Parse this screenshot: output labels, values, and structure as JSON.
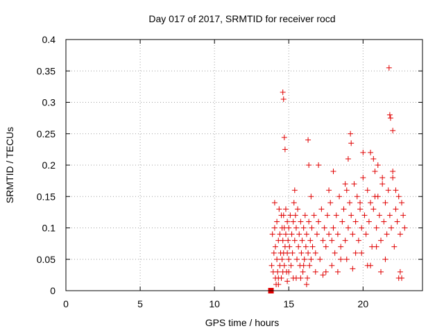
{
  "chart_data": {
    "type": "scatter",
    "title": "Day 017 of 2017, SRMTID for receiver rocd",
    "xlabel": "GPS time / hours",
    "ylabel": "SRMTID / TECUs",
    "xlim": [
      0,
      24
    ],
    "ylim": [
      0,
      0.4
    ],
    "xticks": [
      0,
      5,
      10,
      15,
      20
    ],
    "xtick_labels": [
      "0",
      "5",
      "10",
      "15",
      "20"
    ],
    "yticks": [
      0,
      0.05,
      0.1,
      0.15,
      0.2,
      0.25,
      0.3,
      0.35,
      0.4
    ],
    "ytick_labels": [
      "0",
      "0.05",
      "0.1",
      "0.15",
      "0.2",
      "0.25",
      "0.3",
      "0.35",
      "0.4"
    ],
    "grid": true,
    "marker": "plus",
    "color": "#e00000",
    "series": [
      {
        "name": "SRMTID",
        "x": [
          13.8,
          13.85,
          13.9,
          13.95,
          14.0,
          14.05,
          14.05,
          14.1,
          14.1,
          14.15,
          14.2,
          14.2,
          14.25,
          14.3,
          14.3,
          14.35,
          14.4,
          14.4,
          14.45,
          14.5,
          14.5,
          14.55,
          14.55,
          14.6,
          14.6,
          14.65,
          14.65,
          14.7,
          14.7,
          14.75,
          14.8,
          14.8,
          14.85,
          14.9,
          14.9,
          14.95,
          15.0,
          15.0,
          15.05,
          15.1,
          15.15,
          15.2,
          15.25,
          15.3,
          15.35,
          15.4,
          15.4,
          15.45,
          15.5,
          15.55,
          15.6,
          15.65,
          15.7,
          15.75,
          15.8,
          15.85,
          15.9,
          15.95,
          16.0,
          16.05,
          16.1,
          16.15,
          16.2,
          16.25,
          16.3,
          16.35,
          16.4,
          16.45,
          16.5,
          16.55,
          16.6,
          16.7,
          16.8,
          16.9,
          17.0,
          17.1,
          17.2,
          17.3,
          17.4,
          17.5,
          17.6,
          17.7,
          17.8,
          17.9,
          18.0,
          18.1,
          18.2,
          18.3,
          18.4,
          18.5,
          18.6,
          18.7,
          18.8,
          18.9,
          19.0,
          19.1,
          19.2,
          19.3,
          19.4,
          19.5,
          19.6,
          19.7,
          19.8,
          19.9,
          20.0,
          20.1,
          20.2,
          20.3,
          20.4,
          20.5,
          20.6,
          20.7,
          20.8,
          20.9,
          21.0,
          21.1,
          21.2,
          21.3,
          21.4,
          21.5,
          21.6,
          21.7,
          21.8,
          21.9,
          22.0,
          22.1,
          22.2,
          22.3,
          22.4,
          22.5,
          22.6,
          22.7,
          22.8,
          14.6,
          14.65,
          14.7,
          14.75,
          16.3,
          16.35,
          19.15,
          19.2,
          21.75,
          21.8,
          21.85,
          22.0,
          20.5,
          20.7,
          15.0,
          15.5,
          16.0,
          17.5,
          18.5,
          19.5,
          20.5,
          21.5,
          22.5,
          17.0,
          18.0,
          19.0,
          20.0,
          21.0,
          22.0,
          16.5,
          17.7,
          18.8,
          19.8,
          20.8,
          21.3,
          22.2,
          15.8,
          16.8,
          17.9,
          18.9,
          19.9,
          20.9,
          22.4,
          14.3,
          14.9,
          15.3,
          16.2,
          17.3,
          18.3,
          19.3,
          20.3,
          21.2,
          22.6
        ],
        "y": [
          0.0,
          0.04,
          0.09,
          0.03,
          0.06,
          0.14,
          0.1,
          0.02,
          0.07,
          0.01,
          0.05,
          0.11,
          0.03,
          0.08,
          0.02,
          0.13,
          0.04,
          0.09,
          0.06,
          0.12,
          0.02,
          0.1,
          0.05,
          0.08,
          0.03,
          0.12,
          0.06,
          0.1,
          0.04,
          0.07,
          0.13,
          0.09,
          0.03,
          0.11,
          0.06,
          0.08,
          0.1,
          0.05,
          0.07,
          0.12,
          0.04,
          0.09,
          0.06,
          0.11,
          0.14,
          0.08,
          0.16,
          0.12,
          0.1,
          0.05,
          0.13,
          0.07,
          0.09,
          0.04,
          0.11,
          0.06,
          0.08,
          0.03,
          0.1,
          0.05,
          0.12,
          0.07,
          0.09,
          0.02,
          0.06,
          0.11,
          0.04,
          0.08,
          0.05,
          0.1,
          0.07,
          0.12,
          0.06,
          0.09,
          0.11,
          0.05,
          0.13,
          0.08,
          0.1,
          0.07,
          0.12,
          0.09,
          0.14,
          0.08,
          0.1,
          0.06,
          0.12,
          0.09,
          0.15,
          0.07,
          0.11,
          0.13,
          0.08,
          0.16,
          0.1,
          0.14,
          0.12,
          0.09,
          0.17,
          0.11,
          0.15,
          0.08,
          0.13,
          0.1,
          0.18,
          0.12,
          0.09,
          0.16,
          0.11,
          0.14,
          0.07,
          0.13,
          0.19,
          0.1,
          0.15,
          0.12,
          0.08,
          0.17,
          0.11,
          0.14,
          0.09,
          0.16,
          0.12,
          0.1,
          0.18,
          0.07,
          0.13,
          0.11,
          0.15,
          0.09,
          0.14,
          0.12,
          0.1,
          0.316,
          0.305,
          0.244,
          0.225,
          0.24,
          0.2,
          0.25,
          0.235,
          0.355,
          0.28,
          0.275,
          0.255,
          0.22,
          0.21,
          0.03,
          0.02,
          0.04,
          0.03,
          0.05,
          0.06,
          0.04,
          0.05,
          0.03,
          0.2,
          0.19,
          0.21,
          0.22,
          0.2,
          0.19,
          0.15,
          0.16,
          0.17,
          0.14,
          0.15,
          0.18,
          0.16,
          0.02,
          0.03,
          0.04,
          0.05,
          0.06,
          0.07,
          0.02,
          0.01,
          0.015,
          0.02,
          0.01,
          0.025,
          0.03,
          0.035,
          0.04,
          0.03,
          0.02
        ]
      }
    ],
    "extra_marker": {
      "x": 13.8,
      "y": 0.0,
      "shape": "square"
    }
  }
}
